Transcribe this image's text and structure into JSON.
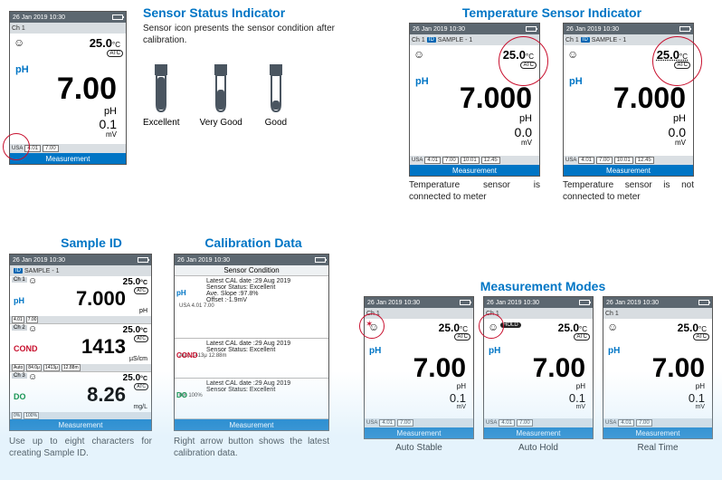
{
  "common": {
    "datetime": "26 Jan 2019 10:30",
    "measurement_label": "Measurement",
    "atc": "ATC",
    "sample_chip": "ID",
    "sample_text": "SAMPLE - 1",
    "ch1": "Ch 1",
    "ch2": "Ch 2",
    "ch3": "Ch 3",
    "usa": "USA",
    "foot_a": "4.01",
    "foot_b": "7.00"
  },
  "colors": {
    "title": "#0075c5",
    "topbar": "#5c6770",
    "measbar": "#0075c5",
    "ph": "#0075c5",
    "cond": "#c8102e",
    "do_": "#008a3c",
    "circle": "#c8102e"
  },
  "sensor_status": {
    "title": "Sensor Status Indicator",
    "desc": "Sensor icon presents the sensor condition after calibration.",
    "icons": [
      "Excellent",
      "Very Good",
      "Good"
    ],
    "screen": {
      "temp": "25.0",
      "temp_unit": "°C",
      "meas_label": "pH",
      "value": "7.00",
      "value_unit": "pH",
      "sub": "0.1",
      "sub_unit": "mV"
    }
  },
  "temp_indicator": {
    "title": "Temperature Sensor Indicator",
    "caption_connected": "Temperature sensor is connected to meter",
    "caption_not": "Temperature sensor is not connected to meter",
    "screen": {
      "temp": "25.0",
      "temp_unit": "°C",
      "meas_label": "pH",
      "value": "7.000",
      "value_unit": "pH",
      "sub": "0.0",
      "sub_unit": "mV",
      "foot_extra1": "10.01",
      "foot_extra2": "12.45"
    }
  },
  "sample_id": {
    "title": "Sample ID",
    "caption": "Use up to eight characters for creating Sample ID.",
    "rows": [
      {
        "label": "pH",
        "color": "#0075c5",
        "temp": "25.0",
        "unit": "°C",
        "value": "7.000",
        "vunit": "pH",
        "foot": [
          "4.01",
          "7.00"
        ]
      },
      {
        "label": "COND",
        "color": "#c8102e",
        "temp": "25.0",
        "unit": "°C",
        "value": "1413",
        "vunit": "µS/cm",
        "foot": [
          "Auto",
          "84.0μ",
          "1413μ",
          "12.88m"
        ]
      },
      {
        "label": "DO",
        "color": "#008a3c",
        "temp": "25.0",
        "unit": "°C",
        "value": "8.26",
        "vunit": "mg/L",
        "foot": [
          "0%",
          "100%"
        ]
      }
    ]
  },
  "cal_data": {
    "title": "Calibration Data",
    "caption": "Right arrow button shows the latest calibration data.",
    "header": "Sensor Condition",
    "blocks": [
      {
        "label": "pH",
        "color": "#0075c5",
        "lines": [
          "Latest CAL date :29 Aug 2019",
          "Sensor Status: Excellent",
          "Ave. Slope   :97.8%",
          "Offset         :-1.9mV"
        ],
        "foot": "USA  4.01  7.00"
      },
      {
        "label": "COND",
        "color": "#c8102e",
        "lines": [
          "Latest CAL date :29 Aug 2019",
          "Sensor Status: Excellent"
        ],
        "foot": "Auto  1413μ  12.88m"
      },
      {
        "label": "DO",
        "color": "#008a3c",
        "lines": [
          "Latest CAL date :29 Aug 2019",
          "Sensor Status: Excellent"
        ],
        "foot": "0%  100%"
      }
    ]
  },
  "modes": {
    "title": "Measurement Modes",
    "items": [
      "Auto Stable",
      "Auto Hold",
      "Real Time"
    ],
    "screen": {
      "temp": "25.0",
      "temp_unit": "°C",
      "meas_label": "pH",
      "value": "7.00",
      "value_unit": "pH",
      "sub": "0.1",
      "sub_unit": "mV"
    },
    "hold": "HOLD"
  }
}
